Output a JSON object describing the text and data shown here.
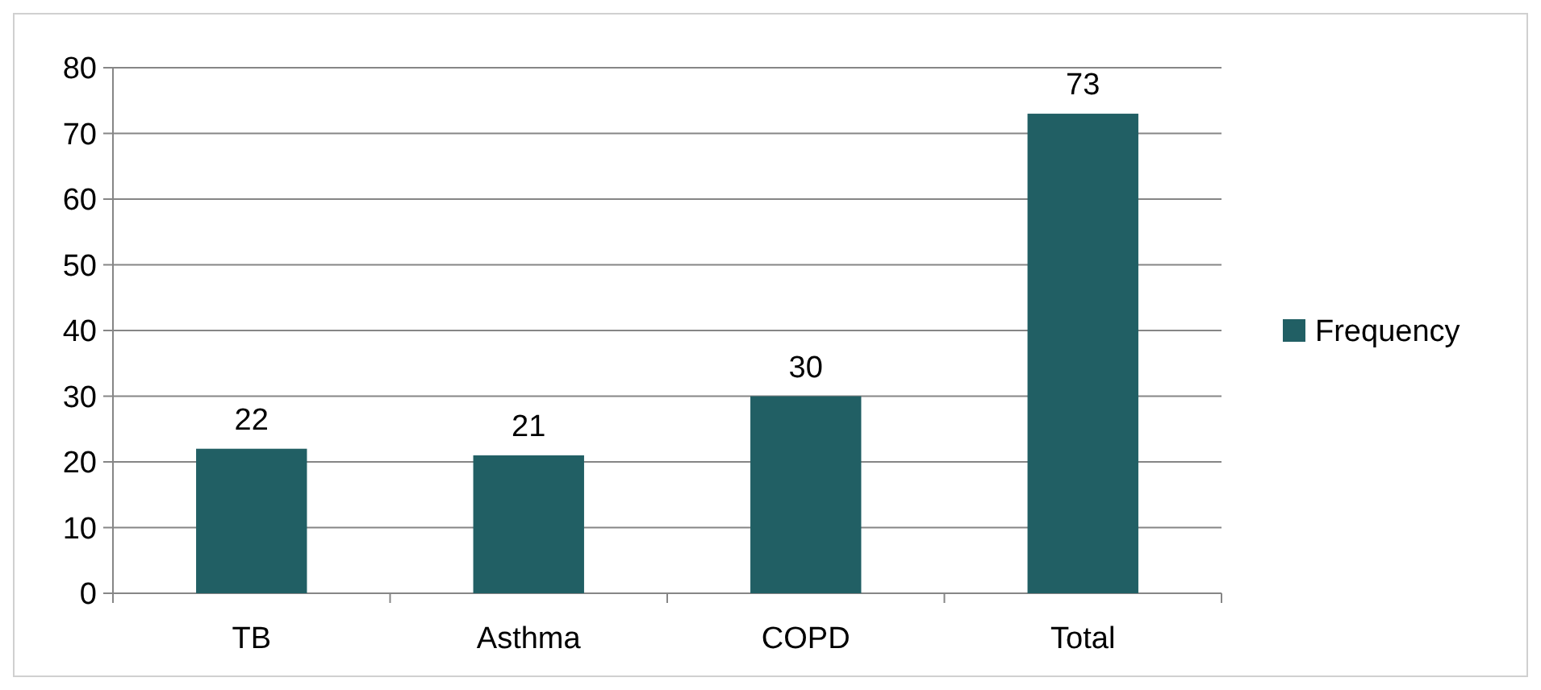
{
  "chart_data": {
    "type": "bar",
    "categories": [
      "TB",
      "Asthma",
      "COPD",
      "Total"
    ],
    "series": [
      {
        "name": "Frequency",
        "color": "#215f64",
        "values": [
          22,
          21,
          30,
          73
        ]
      }
    ],
    "ylim": [
      0,
      80
    ],
    "yticks": [
      0,
      10,
      20,
      30,
      40,
      50,
      60,
      70,
      80
    ],
    "grid": "y",
    "legend": "right",
    "data_labels": true
  }
}
